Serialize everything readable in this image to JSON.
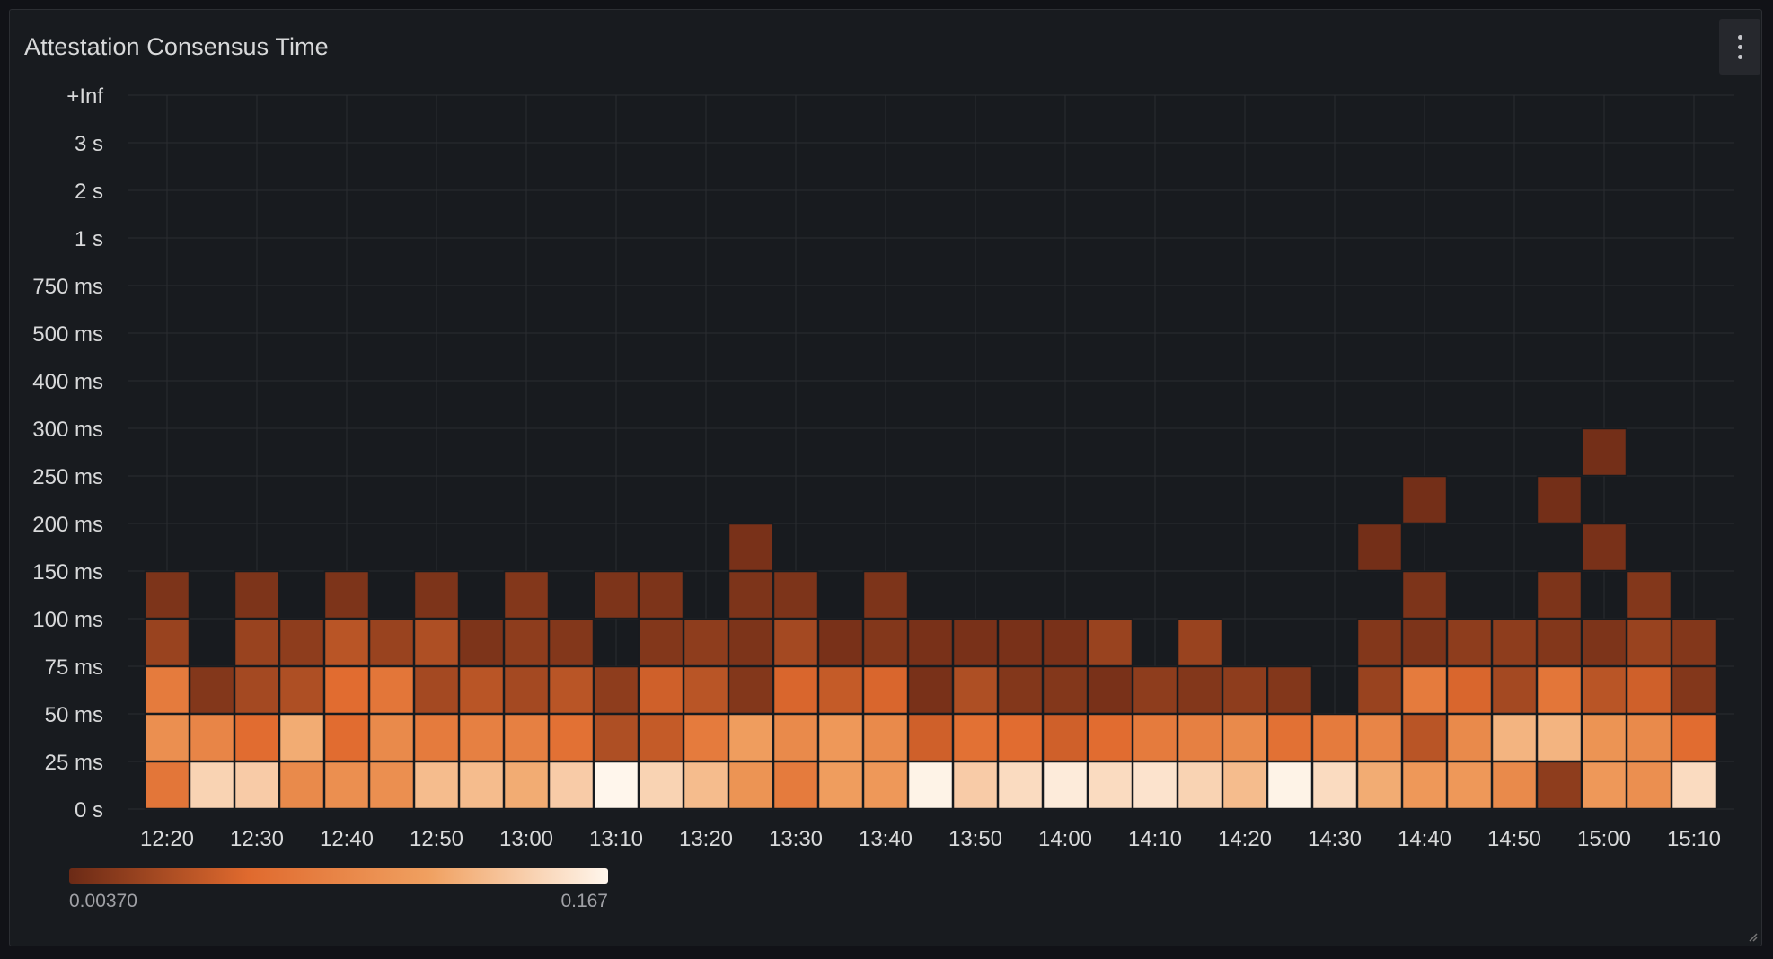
{
  "panel": {
    "title": "Attestation Consensus Time",
    "menu_icon": "kebab-menu-icon",
    "resize_icon": "resize-handle-icon"
  },
  "chart_data": {
    "type": "heatmap",
    "title": "Attestation Consensus Time",
    "x_ticks": [
      "12:20",
      "12:30",
      "12:40",
      "12:50",
      "13:00",
      "13:10",
      "13:20",
      "13:30",
      "13:40",
      "13:50",
      "14:00",
      "14:10",
      "14:20",
      "14:30",
      "14:40",
      "14:50",
      "15:00",
      "15:10"
    ],
    "y_buckets": [
      "0 s",
      "25 ms",
      "50 ms",
      "75 ms",
      "100 ms",
      "150 ms",
      "200 ms",
      "250 ms",
      "300 ms",
      "400 ms",
      "500 ms",
      "750 ms",
      "1 s",
      "2 s",
      "3 s",
      "+Inf"
    ],
    "x": [
      "12:20",
      "12:25",
      "12:30",
      "12:35",
      "12:40",
      "12:45",
      "12:50",
      "12:55",
      "13:00",
      "13:05",
      "13:10",
      "13:15",
      "13:20",
      "13:25",
      "13:30",
      "13:35",
      "13:40",
      "13:45",
      "13:50",
      "13:55",
      "14:00",
      "14:05",
      "14:10",
      "14:15",
      "14:20",
      "14:25",
      "14:30",
      "14:35",
      "14:40",
      "14:45",
      "14:50",
      "14:55",
      "15:00",
      "15:05",
      "15:10"
    ],
    "row_labels": [
      "25 ms",
      "50 ms",
      "75 ms",
      "100 ms",
      "150 ms",
      "200 ms",
      "250 ms",
      "300 ms"
    ],
    "values": [
      [
        0.07,
        0.145,
        0.14,
        0.09,
        0.095,
        0.095,
        0.13,
        0.13,
        0.12,
        0.14,
        0.167,
        0.145,
        0.13,
        0.1,
        0.075,
        0.11,
        0.105,
        0.165,
        0.14,
        0.15,
        0.16,
        0.15,
        0.155,
        0.145,
        0.13,
        0.165,
        0.15,
        0.12,
        0.105,
        0.105,
        0.09,
        0.02,
        0.105,
        0.095,
        0.15
      ],
      [
        0.095,
        0.085,
        0.06,
        0.12,
        0.06,
        0.09,
        0.075,
        0.08,
        0.08,
        0.065,
        0.035,
        0.045,
        0.075,
        0.11,
        0.09,
        0.105,
        0.09,
        0.05,
        0.065,
        0.06,
        0.05,
        0.06,
        0.075,
        0.08,
        0.09,
        0.065,
        0.075,
        0.085,
        0.04,
        0.09,
        0.125,
        0.125,
        0.1,
        0.09,
        0.06
      ],
      [
        0.075,
        0.015,
        0.03,
        0.035,
        0.06,
        0.07,
        0.03,
        0.04,
        0.03,
        0.04,
        0.02,
        0.05,
        0.04,
        0.015,
        0.055,
        0.045,
        0.055,
        0.01,
        0.035,
        0.015,
        0.015,
        0.01,
        0.02,
        0.015,
        0.02,
        0.015,
        null,
        0.025,
        0.075,
        0.055,
        0.03,
        0.07,
        0.04,
        0.05,
        0.015
      ],
      [
        0.025,
        null,
        0.025,
        0.02,
        0.04,
        0.025,
        0.035,
        0.012,
        0.02,
        0.015,
        null,
        0.015,
        0.02,
        0.012,
        0.03,
        0.01,
        0.015,
        0.01,
        0.01,
        0.01,
        0.01,
        0.025,
        null,
        0.025,
        null,
        null,
        null,
        0.015,
        0.012,
        0.02,
        0.02,
        0.015,
        0.012,
        0.025,
        0.015
      ],
      [
        0.012,
        null,
        0.012,
        null,
        0.012,
        null,
        0.012,
        null,
        0.015,
        null,
        0.012,
        0.012,
        null,
        0.012,
        0.012,
        null,
        0.012,
        null,
        null,
        null,
        null,
        null,
        null,
        null,
        null,
        null,
        null,
        null,
        0.012,
        null,
        null,
        0.012,
        null,
        0.015,
        null
      ],
      [
        null,
        null,
        null,
        null,
        null,
        null,
        null,
        null,
        null,
        null,
        null,
        null,
        null,
        0.01,
        null,
        null,
        null,
        null,
        null,
        null,
        null,
        null,
        null,
        null,
        null,
        null,
        null,
        0.008,
        null,
        null,
        null,
        null,
        0.01,
        null,
        null
      ],
      [
        null,
        null,
        null,
        null,
        null,
        null,
        null,
        null,
        null,
        null,
        null,
        null,
        null,
        null,
        null,
        null,
        null,
        null,
        null,
        null,
        null,
        null,
        null,
        null,
        null,
        null,
        null,
        null,
        0.008,
        null,
        null,
        0.008,
        null,
        null,
        null
      ],
      [
        null,
        null,
        null,
        null,
        null,
        null,
        null,
        null,
        null,
        null,
        null,
        null,
        null,
        null,
        null,
        null,
        null,
        null,
        null,
        null,
        null,
        null,
        null,
        null,
        null,
        null,
        null,
        null,
        null,
        null,
        null,
        null,
        0.008,
        null,
        null
      ]
    ],
    "color_scale": {
      "min": 0.0037,
      "max": 0.167,
      "min_label": "0.00370",
      "max_label": "0.167",
      "stops": [
        "#6b2a16",
        "#e06a2e",
        "#f0a060",
        "#fff6ec"
      ]
    },
    "grid": true,
    "legend_placement": "bottom-left"
  }
}
